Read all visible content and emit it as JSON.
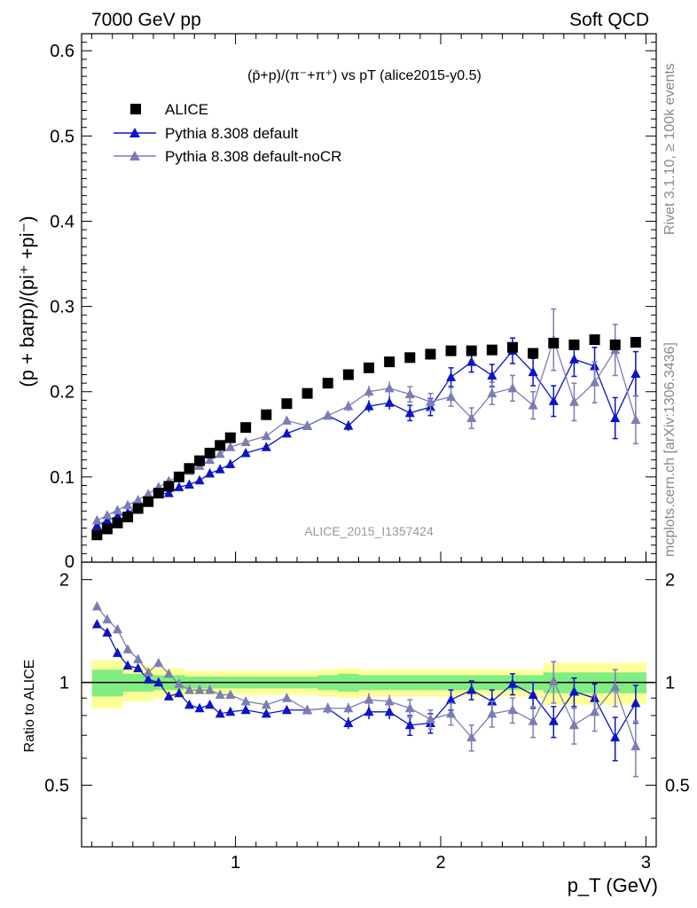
{
  "header": {
    "left": "7000 GeV pp",
    "right": "Soft QCD"
  },
  "side_text": {
    "rivet": "Rivet 3.1.10, ≥ 100k events",
    "mcplots": "mcplots.cern.ch [arXiv:1306.3436]"
  },
  "analysis_label": "ALICE_2015_I1357424",
  "colors": {
    "alice": "#000000",
    "default": "#0a14c8",
    "nocr": "#7d7db4",
    "band_inner": "#80ee80",
    "band_outer": "#ffff99"
  },
  "chart_data": {
    "type": "scatter",
    "title": "(p̄+p)/(π⁻+π⁺) vs pT (alice2015-y0.5)",
    "ylabel": "(p + barp)/(pi⁺ +pi⁻)",
    "ratio_ylabel": "Ratio to ALICE",
    "xlabel": "p_T (GeV)",
    "xlim": [
      0.25,
      3.05
    ],
    "ylim": [
      0.0,
      0.62
    ],
    "ratio_ylim": [
      0.33,
      2.25
    ],
    "x_ticks": [
      1,
      2,
      3
    ],
    "y_ticks": [
      0.1,
      0.2,
      0.3,
      0.4,
      0.5,
      0.6
    ],
    "y_tick_labels": [
      "0.1",
      "0.2",
      "0.3",
      "0.4",
      "0.5",
      "0.6"
    ],
    "y_zero_label": "0",
    "ratio_ticks": [
      0.5,
      1,
      2
    ],
    "ratio_tick_labels": [
      "0.5",
      "1",
      "2"
    ],
    "x": [
      0.325,
      0.375,
      0.425,
      0.475,
      0.525,
      0.575,
      0.625,
      0.675,
      0.725,
      0.775,
      0.825,
      0.875,
      0.925,
      0.975,
      1.05,
      1.15,
      1.25,
      1.35,
      1.45,
      1.55,
      1.65,
      1.75,
      1.85,
      1.95,
      2.05,
      2.15,
      2.25,
      2.35,
      2.45,
      2.55,
      2.65,
      2.75,
      2.85,
      2.95
    ],
    "series": [
      {
        "name": "ALICE",
        "marker": "square",
        "values": [
          0.032,
          0.039,
          0.046,
          0.053,
          0.063,
          0.071,
          0.081,
          0.089,
          0.1,
          0.11,
          0.119,
          0.128,
          0.137,
          0.146,
          0.158,
          0.173,
          0.186,
          0.198,
          0.21,
          0.22,
          0.228,
          0.235,
          0.24,
          0.244,
          0.248,
          0.248,
          0.249,
          0.252,
          0.245,
          0.257,
          0.255,
          0.261,
          0.255,
          0.258
        ],
        "errors": [
          0.001,
          0.001,
          0.001,
          0.001,
          0.001,
          0.001,
          0.001,
          0.001,
          0.001,
          0.001,
          0.001,
          0.001,
          0.001,
          0.001,
          0.001,
          0.001,
          0.001,
          0.001,
          0.001,
          0.001,
          0.001,
          0.001,
          0.001,
          0.001,
          0.001,
          0.001,
          0.001,
          0.001,
          0.001,
          0.001,
          0.001,
          0.001,
          0.001,
          0.001
        ],
        "ratio": [
          1,
          1,
          1,
          1,
          1,
          1,
          1,
          1,
          1,
          1,
          1,
          1,
          1,
          1,
          1,
          1,
          1,
          1,
          1,
          1,
          1,
          1,
          1,
          1,
          1,
          1,
          1,
          1,
          1,
          1,
          1,
          1,
          1,
          1
        ],
        "band_inner": [
          0.09,
          0.09,
          0.09,
          0.06,
          0.06,
          0.06,
          0.05,
          0.05,
          0.05,
          0.04,
          0.04,
          0.04,
          0.04,
          0.04,
          0.04,
          0.04,
          0.04,
          0.04,
          0.05,
          0.06,
          0.05,
          0.05,
          0.05,
          0.05,
          0.05,
          0.05,
          0.05,
          0.05,
          0.05,
          0.07,
          0.07,
          0.07,
          0.07,
          0.07
        ],
        "band_outer": [
          0.16,
          0.16,
          0.16,
          0.12,
          0.12,
          0.12,
          0.1,
          0.1,
          0.1,
          0.08,
          0.08,
          0.08,
          0.08,
          0.08,
          0.08,
          0.08,
          0.08,
          0.08,
          0.09,
          0.1,
          0.09,
          0.09,
          0.09,
          0.09,
          0.09,
          0.09,
          0.09,
          0.09,
          0.09,
          0.14,
          0.14,
          0.14,
          0.14,
          0.14
        ]
      },
      {
        "name": "Pythia 8.308 default",
        "marker": "triangle",
        "values": [
          0.043,
          0.049,
          0.054,
          0.058,
          0.065,
          0.071,
          0.08,
          0.081,
          0.088,
          0.091,
          0.096,
          0.104,
          0.109,
          0.115,
          0.128,
          0.135,
          0.151,
          0.16,
          0.172,
          0.16,
          0.183,
          0.187,
          0.175,
          0.182,
          0.217,
          0.235,
          0.219,
          0.248,
          0.223,
          0.189,
          0.238,
          0.23,
          0.169,
          0.221
        ],
        "errors": [
          0.002,
          0.002,
          0.002,
          0.002,
          0.002,
          0.002,
          0.002,
          0.002,
          0.002,
          0.002,
          0.002,
          0.002,
          0.002,
          0.002,
          0.003,
          0.003,
          0.004,
          0.004,
          0.005,
          0.006,
          0.007,
          0.008,
          0.009,
          0.01,
          0.011,
          0.012,
          0.013,
          0.015,
          0.016,
          0.018,
          0.02,
          0.022,
          0.024,
          0.026
        ],
        "ratio": [
          1.48,
          1.4,
          1.22,
          1.12,
          1.1,
          1.02,
          1.0,
          0.91,
          0.93,
          0.86,
          0.84,
          0.86,
          0.81,
          0.82,
          0.83,
          0.81,
          0.83,
          0.83,
          0.84,
          0.76,
          0.82,
          0.82,
          0.75,
          0.76,
          0.89,
          0.95,
          0.88,
          0.99,
          0.92,
          0.77,
          0.94,
          0.9,
          0.69,
          0.87
        ],
        "ratio_errors": [
          0.02,
          0.02,
          0.02,
          0.02,
          0.02,
          0.02,
          0.02,
          0.02,
          0.02,
          0.02,
          0.02,
          0.02,
          0.02,
          0.02,
          0.02,
          0.02,
          0.02,
          0.02,
          0.03,
          0.03,
          0.04,
          0.04,
          0.05,
          0.05,
          0.06,
          0.06,
          0.07,
          0.07,
          0.08,
          0.08,
          0.09,
          0.09,
          0.1,
          0.11
        ]
      },
      {
        "name": "Pythia 8.308 default-noCR",
        "marker": "triangle",
        "values": [
          0.049,
          0.055,
          0.061,
          0.067,
          0.073,
          0.08,
          0.088,
          0.095,
          0.101,
          0.107,
          0.113,
          0.12,
          0.127,
          0.135,
          0.141,
          0.148,
          0.166,
          0.16,
          0.172,
          0.183,
          0.2,
          0.204,
          0.197,
          0.188,
          0.194,
          0.169,
          0.198,
          0.204,
          0.184,
          0.261,
          0.188,
          0.211,
          0.249,
          0.167
        ],
        "errors": [
          0.002,
          0.002,
          0.002,
          0.002,
          0.002,
          0.002,
          0.002,
          0.002,
          0.002,
          0.002,
          0.002,
          0.002,
          0.002,
          0.002,
          0.003,
          0.003,
          0.004,
          0.004,
          0.005,
          0.006,
          0.007,
          0.008,
          0.009,
          0.01,
          0.011,
          0.012,
          0.013,
          0.015,
          0.016,
          0.036,
          0.022,
          0.024,
          0.03,
          0.028
        ],
        "ratio": [
          1.67,
          1.53,
          1.43,
          1.25,
          1.17,
          1.07,
          1.14,
          1.06,
          0.99,
          0.95,
          0.95,
          0.95,
          0.92,
          0.92,
          0.88,
          0.86,
          0.9,
          0.83,
          0.84,
          0.84,
          0.89,
          0.88,
          0.84,
          0.78,
          0.81,
          0.69,
          0.81,
          0.83,
          0.77,
          1.01,
          0.75,
          0.82,
          0.97,
          0.65
        ],
        "ratio_errors": [
          0.02,
          0.02,
          0.02,
          0.02,
          0.02,
          0.02,
          0.02,
          0.02,
          0.02,
          0.02,
          0.02,
          0.02,
          0.02,
          0.02,
          0.02,
          0.02,
          0.02,
          0.02,
          0.03,
          0.03,
          0.04,
          0.04,
          0.05,
          0.05,
          0.06,
          0.06,
          0.07,
          0.07,
          0.08,
          0.14,
          0.09,
          0.1,
          0.12,
          0.12
        ]
      }
    ],
    "legend": "top-left"
  }
}
